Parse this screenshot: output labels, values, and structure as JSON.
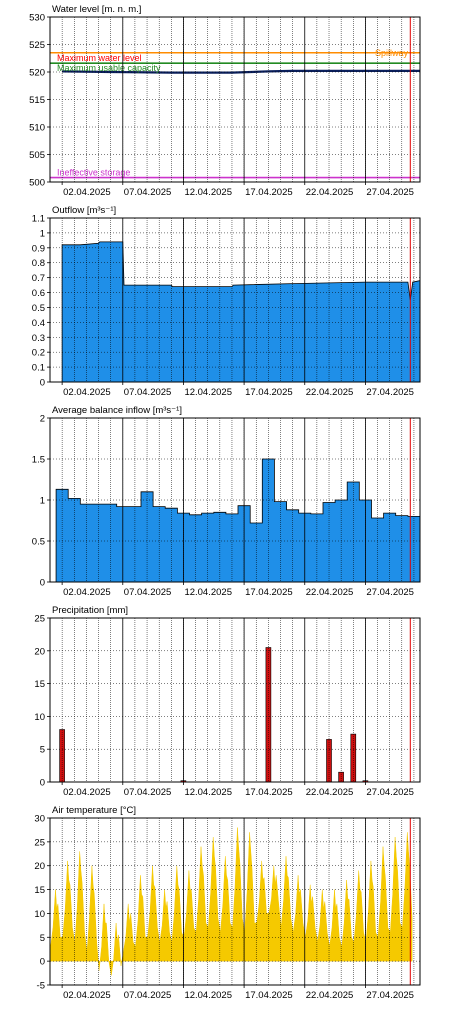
{
  "colors": {
    "background": "#ffffff",
    "grid": "#000000",
    "flow_fill": "#1f8fe8",
    "temp_fill": "#f5c900",
    "precip_bar": "#d01010",
    "current_time": "#e00000",
    "water_line": "#0a1f5c",
    "max_water_level": "#ff0000",
    "spillway": "#ff8c00",
    "max_usable_capacity": "#228b22",
    "ineffective_storage": "#cc33cc"
  },
  "chart_data": [
    {
      "id": "water_level",
      "type": "line",
      "title": "Water level [m. n. m.]",
      "ylim": [
        500,
        530
      ],
      "yticks": [
        500,
        505,
        510,
        515,
        520,
        525,
        530
      ],
      "x_tick_labels": [
        "02.04.2025",
        "07.04.2025",
        "12.04.2025",
        "17.04.2025",
        "22.04.2025",
        "27.04.2025"
      ],
      "grid": true,
      "levels": [
        {
          "name": "Maximum water level",
          "value": 523.5,
          "color": "#ff0000"
        },
        {
          "name": "Spillway",
          "value": 523.5,
          "color": "#ff8c00"
        },
        {
          "name": "Maximum usable capacity",
          "value": 521.6,
          "color": "#228b22"
        },
        {
          "name": "Ineffective storage",
          "value": 500.8,
          "color": "#cc33cc"
        }
      ],
      "series": [
        {
          "x": [
            1,
            5,
            10,
            15,
            18,
            20,
            25,
            30.5
          ],
          "values": [
            520.1,
            520.0,
            519.9,
            519.9,
            520.1,
            520.2,
            520.2,
            520.2
          ]
        }
      ]
    },
    {
      "id": "outflow",
      "type": "area",
      "title": "Outflow [m³s⁻¹]",
      "ylim": [
        0,
        1.1
      ],
      "yticks": [
        0,
        0.1,
        0.2,
        0.3,
        0.4,
        0.5,
        0.6,
        0.7,
        0.8,
        0.9,
        1,
        1.1
      ],
      "x_tick_labels": [
        "02.04.2025",
        "07.04.2025",
        "12.04.2025",
        "17.04.2025",
        "22.04.2025",
        "27.04.2025"
      ],
      "grid": true,
      "series": [
        {
          "x": [
            1,
            2.5,
            4,
            4.1,
            6,
            6.1,
            10,
            10.1,
            15,
            15.1,
            20,
            20.1,
            26,
            26.1,
            29.5,
            29.7,
            29.9,
            30.5
          ],
          "values": [
            0.92,
            0.92,
            0.93,
            0.94,
            0.94,
            0.65,
            0.65,
            0.64,
            0.64,
            0.65,
            0.66,
            0.66,
            0.67,
            0.67,
            0.67,
            0.55,
            0.67,
            0.68
          ]
        }
      ]
    },
    {
      "id": "inflow",
      "type": "area",
      "title": "Average balance inflow  [m³s⁻¹]",
      "ylim": [
        0,
        2
      ],
      "yticks": [
        0,
        0.5,
        1,
        1.5,
        2
      ],
      "x_tick_labels": [
        "02.04.2025",
        "07.04.2025",
        "12.04.2025",
        "17.04.2025",
        "22.04.2025",
        "27.04.2025"
      ],
      "grid": true,
      "days": [
        1,
        2,
        3,
        4,
        5,
        6,
        7,
        8,
        9,
        10,
        11,
        12,
        13,
        14,
        15,
        16,
        17,
        18,
        19,
        20,
        21,
        22,
        23,
        24,
        25,
        26,
        27,
        28,
        29,
        30
      ],
      "values": [
        1.13,
        1.02,
        0.95,
        0.95,
        0.95,
        0.92,
        0.92,
        1.1,
        0.92,
        0.9,
        0.84,
        0.82,
        0.84,
        0.85,
        0.83,
        0.93,
        0.72,
        1.5,
        0.98,
        0.88,
        0.84,
        0.83,
        0.97,
        1.0,
        1.22,
        1.0,
        0.78,
        0.84,
        0.81,
        0.8
      ]
    },
    {
      "id": "precipitation",
      "type": "bar",
      "title": "Precipitation [mm]",
      "ylim": [
        0,
        25
      ],
      "yticks": [
        0,
        5,
        10,
        15,
        20,
        25
      ],
      "x_tick_labels": [
        "02.04.2025",
        "07.04.2025",
        "12.04.2025",
        "17.04.2025",
        "22.04.2025",
        "27.04.2025"
      ],
      "grid": true,
      "days": [
        1,
        2,
        3,
        4,
        5,
        6,
        7,
        8,
        9,
        10,
        11,
        12,
        13,
        14,
        15,
        16,
        17,
        18,
        19,
        20,
        21,
        22,
        23,
        24,
        25,
        26,
        27,
        28,
        29,
        30
      ],
      "values": [
        8.0,
        0,
        0,
        0,
        0,
        0,
        0,
        0,
        0,
        0,
        0.2,
        0,
        0,
        0,
        0,
        0,
        0,
        20.5,
        0,
        0,
        0,
        0,
        6.5,
        1.5,
        7.3,
        0.2,
        0,
        0,
        0,
        0
      ]
    },
    {
      "id": "air_temperature",
      "type": "area",
      "title": "Air temperature [°C]",
      "ylim": [
        -5,
        30
      ],
      "yticks": [
        -5,
        0,
        5,
        10,
        15,
        20,
        25,
        30
      ],
      "x_tick_labels": [
        "02.04.2025",
        "07.04.2025",
        "12.04.2025",
        "17.04.2025",
        "22.04.2025",
        "27.04.2025"
      ],
      "grid": true,
      "daily_min": [
        3,
        5,
        4,
        2,
        -2,
        -3,
        2,
        3,
        5,
        4,
        4,
        5,
        6,
        7,
        6,
        7,
        6,
        8,
        10,
        7,
        6,
        5,
        4,
        3,
        3,
        4,
        4,
        5,
        6,
        7
      ],
      "daily_max": [
        15,
        21,
        23,
        20,
        12,
        8,
        12,
        18,
        20,
        15,
        20,
        19,
        24,
        26,
        22,
        28,
        27,
        21,
        20,
        22,
        18,
        16,
        15,
        15,
        17,
        19,
        21,
        24,
        26,
        27
      ]
    }
  ]
}
